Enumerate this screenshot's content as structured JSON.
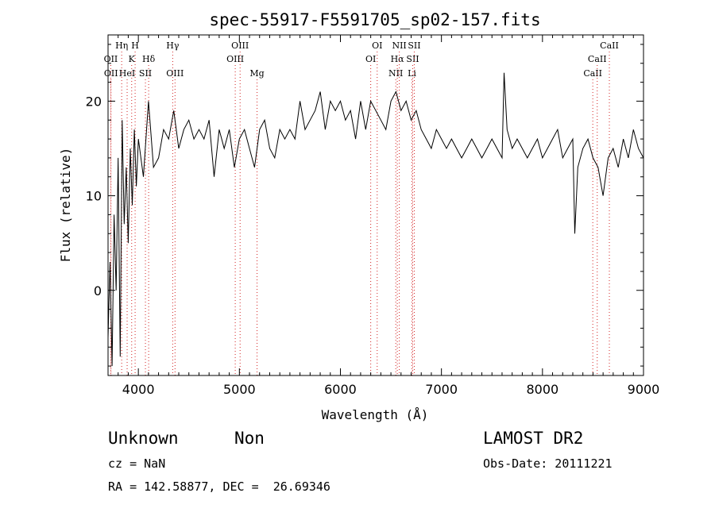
{
  "chart_data": {
    "type": "line",
    "title": "spec-55917-F5591705_sp02-157.fits",
    "xlabel": "Wavelength (Å)",
    "ylabel": "Flux (relative)",
    "xlim": [
      3700,
      9000
    ],
    "ylim": [
      -9,
      27
    ],
    "x_ticks": [
      4000,
      5000,
      6000,
      7000,
      8000,
      9000
    ],
    "y_ticks": [
      0,
      10,
      20
    ],
    "grid": false,
    "colors": {
      "spectrum": "#000000",
      "line_marker": "#d22222"
    },
    "series": [
      {
        "x": [
          3700,
          3720,
          3740,
          3760,
          3780,
          3800,
          3820,
          3840,
          3860,
          3880,
          3900,
          3920,
          3940,
          3960,
          3980,
          4000,
          4050,
          4100,
          4150,
          4200,
          4250,
          4300,
          4350,
          4400,
          4450,
          4500,
          4550,
          4600,
          4650,
          4700,
          4750,
          4800,
          4850,
          4900,
          4950,
          5000,
          5050,
          5100,
          5150,
          5200,
          5250,
          5300,
          5350,
          5400,
          5450,
          5500,
          5550,
          5600,
          5650,
          5700,
          5750,
          5800,
          5850,
          5900,
          5950,
          6000,
          6050,
          6100,
          6150,
          6200,
          6250,
          6300,
          6350,
          6400,
          6450,
          6500,
          6550,
          6600,
          6650,
          6700,
          6750,
          6800,
          6850,
          6900,
          6950,
          7000,
          7050,
          7100,
          7150,
          7200,
          7250,
          7300,
          7350,
          7400,
          7450,
          7500,
          7550,
          7600,
          7620,
          7650,
          7700,
          7750,
          7800,
          7850,
          7900,
          7950,
          8000,
          8050,
          8100,
          8150,
          8200,
          8250,
          8300,
          8320,
          8350,
          8400,
          8450,
          8500,
          8550,
          8600,
          8650,
          8700,
          8750,
          8800,
          8850,
          8900,
          8950,
          9000
        ],
        "y": [
          -5,
          3,
          -8,
          8,
          0,
          14,
          -7,
          18,
          7,
          13,
          5,
          15,
          9,
          17,
          11,
          16,
          12,
          20,
          13,
          14,
          17,
          16,
          19,
          15,
          17,
          18,
          16,
          17,
          16,
          18,
          12,
          17,
          15,
          17,
          13,
          16,
          17,
          15,
          13,
          17,
          18,
          15,
          14,
          17,
          16,
          17,
          16,
          20,
          17,
          18,
          19,
          21,
          17,
          20,
          19,
          20,
          18,
          19,
          16,
          20,
          17,
          20,
          19,
          18,
          17,
          20,
          21,
          19,
          20,
          18,
          19,
          17,
          16,
          15,
          17,
          16,
          15,
          16,
          15,
          14,
          15,
          16,
          15,
          14,
          15,
          16,
          15,
          14,
          23,
          17,
          15,
          16,
          15,
          14,
          15,
          16,
          14,
          15,
          16,
          17,
          14,
          15,
          16,
          6,
          13,
          15,
          16,
          14,
          13,
          10,
          14,
          15,
          13,
          16,
          14,
          17,
          15,
          14
        ]
      }
    ],
    "line_markers": [
      {
        "label": "OII",
        "x": 3727,
        "row": 2
      },
      {
        "label": "OII",
        "x": 3729,
        "row": 3
      },
      {
        "label": "Hη",
        "x": 3835,
        "row": 1
      },
      {
        "label": "K",
        "x": 3934,
        "row": 2
      },
      {
        "label": "H",
        "x": 3968,
        "row": 1
      },
      {
        "label": "HeI",
        "x": 3889,
        "row": 3
      },
      {
        "label": "SII",
        "x": 4070,
        "row": 3
      },
      {
        "label": "Hδ",
        "x": 4102,
        "row": 2
      },
      {
        "label": "Hγ",
        "x": 4340,
        "row": 1
      },
      {
        "label": "OIII",
        "x": 4363,
        "row": 3
      },
      {
        "label": "OIII",
        "x": 4959,
        "row": 2
      },
      {
        "label": "OIII",
        "x": 5007,
        "row": 1
      },
      {
        "label": "Mg",
        "x": 5175,
        "row": 3
      },
      {
        "label": "OI",
        "x": 6300,
        "row": 2
      },
      {
        "label": "OI",
        "x": 6364,
        "row": 1
      },
      {
        "label": "NII",
        "x": 6548,
        "row": 3
      },
      {
        "label": "Hα",
        "x": 6563,
        "row": 2
      },
      {
        "label": "NII",
        "x": 6583,
        "row": 1
      },
      {
        "label": "Li",
        "x": 6708,
        "row": 3
      },
      {
        "label": "SII",
        "x": 6716,
        "row": 2
      },
      {
        "label": "SII",
        "x": 6731,
        "row": 1
      },
      {
        "label": "CaII",
        "x": 8498,
        "row": 3
      },
      {
        "label": "CaII",
        "x": 8542,
        "row": 2
      },
      {
        "label": "CaII",
        "x": 8662,
        "row": 1
      }
    ]
  },
  "info": {
    "class_text": "Unknown",
    "subclass_text": "Non",
    "survey": "LAMOST DR2",
    "cz": "cz = NaN",
    "obs_date": "Obs-Date: 20111221",
    "coords": "RA = 142.58877, DEC =  26.69346"
  }
}
